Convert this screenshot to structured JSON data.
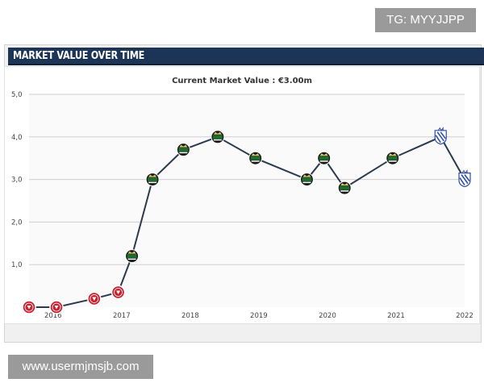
{
  "watermark_top": "TG: MYYJJPP",
  "watermark_bottom": "www.usermjmsjb.com",
  "panel": {
    "title": "MARKET VALUE OVER TIME"
  },
  "colors": {
    "header_bg": "#1c3556",
    "line": "#2b3a4f",
    "club_red": "#c8202f",
    "club_green": "#1e6b2e",
    "club_blue": "#2f4fa8"
  },
  "chart_data": {
    "type": "line",
    "title": "Current Market Value : €3.00m",
    "xlabel": "",
    "ylabel": "",
    "ylim": [
      0,
      5
    ],
    "yticks": [
      "5,0",
      "4,0",
      "3,0",
      "2,0",
      "1,0"
    ],
    "ytick_values": [
      5,
      4,
      3,
      2,
      1
    ],
    "xlim": [
      2015.65,
      2022.0
    ],
    "xticks": [
      "2016",
      "2017",
      "2018",
      "2019",
      "2020",
      "2021",
      "2022"
    ],
    "xtick_values": [
      2016,
      2017,
      2018,
      2019,
      2020,
      2021,
      2022
    ],
    "grid": true,
    "legend": "none",
    "series": [
      {
        "points": [
          {
            "x": 2015.65,
            "y": 0.0,
            "club": "red-crest-icon"
          },
          {
            "x": 2016.05,
            "y": 0.0,
            "club": "red-crest-icon"
          },
          {
            "x": 2016.6,
            "y": 0.2,
            "club": "red-crest-icon"
          },
          {
            "x": 2016.95,
            "y": 0.35,
            "club": "red-crest-icon"
          },
          {
            "x": 2017.15,
            "y": 1.2,
            "club": "green-crest-icon"
          },
          {
            "x": 2017.45,
            "y": 3.0,
            "club": "green-crest-icon"
          },
          {
            "x": 2017.9,
            "y": 3.7,
            "club": "green-crest-icon"
          },
          {
            "x": 2018.4,
            "y": 4.0,
            "club": "green-crest-icon"
          },
          {
            "x": 2018.95,
            "y": 3.5,
            "club": "green-crest-icon"
          },
          {
            "x": 2019.7,
            "y": 3.0,
            "club": "green-crest-icon"
          },
          {
            "x": 2019.95,
            "y": 3.5,
            "club": "green-crest-icon"
          },
          {
            "x": 2020.25,
            "y": 2.8,
            "club": "green-crest-icon"
          },
          {
            "x": 2020.95,
            "y": 3.5,
            "club": "green-crest-icon"
          },
          {
            "x": 2021.65,
            "y": 4.0,
            "club": "blue-crest-icon"
          },
          {
            "x": 2022.0,
            "y": 3.0,
            "club": "blue-crest-icon"
          }
        ]
      }
    ]
  }
}
